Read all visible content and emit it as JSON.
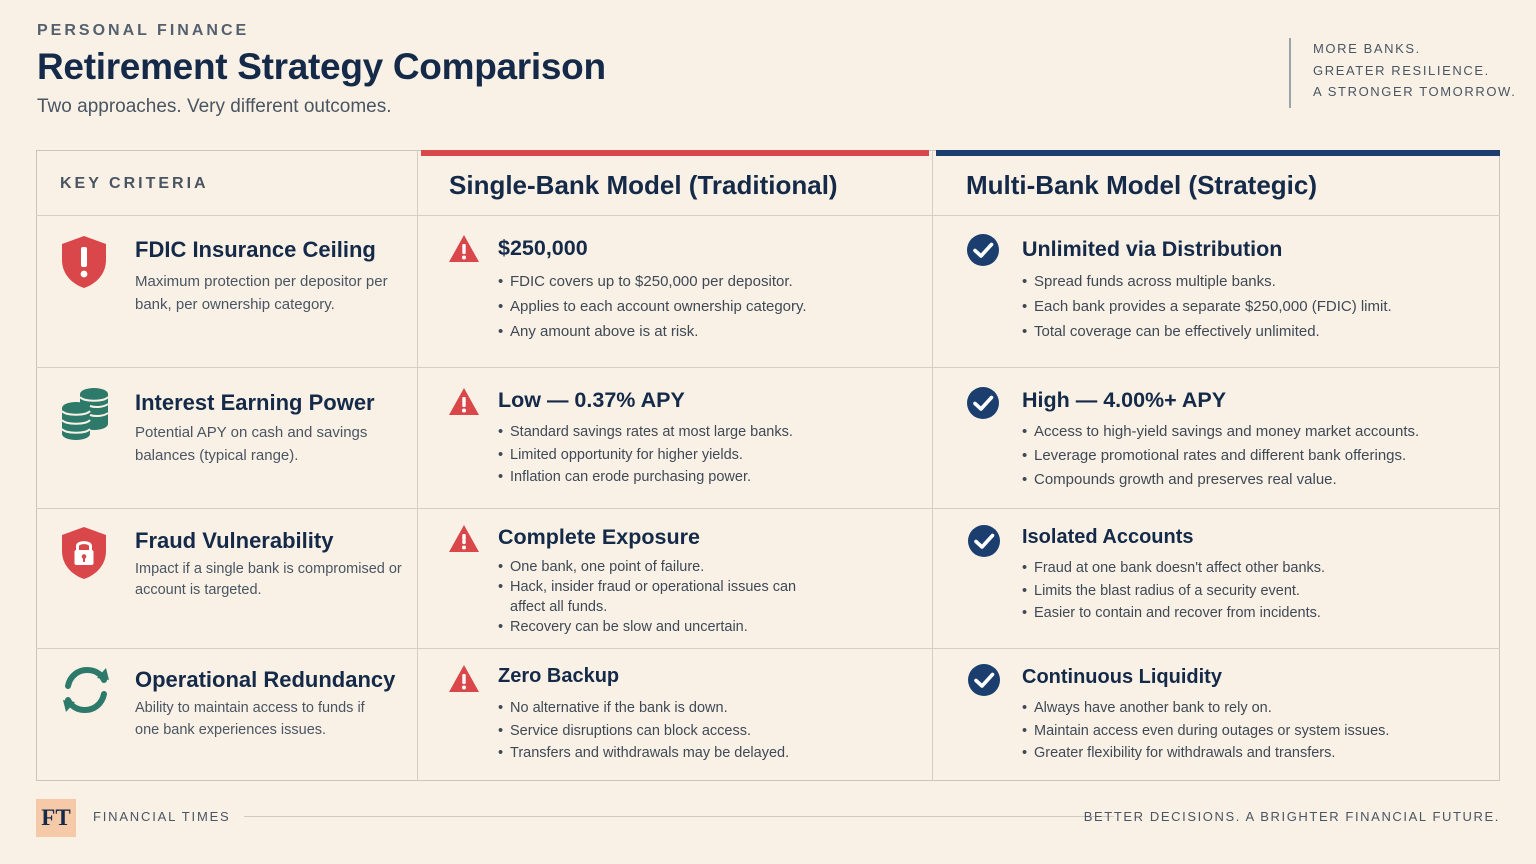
{
  "header": {
    "kicker": "PERSONAL FINANCE",
    "title": "Retirement Strategy Comparison",
    "subtitle": "Two approaches. Very different outcomes.",
    "tagline": [
      "MORE BANKS.",
      "GREATER RESILIENCE.",
      "A STRONGER TOMORROW."
    ]
  },
  "colors": {
    "background": "#f9f1e6",
    "navy": "#142a48",
    "red_accent": "#d9474a",
    "teal": "#2d7a6b",
    "blue_check": "#1b3e6e"
  },
  "table": {
    "criteria_header": "KEY CRITERIA",
    "single_header": "Single-Bank Model (Traditional)",
    "multi_header": "Multi-Bank Model (Strategic)",
    "rows": [
      {
        "icon": "shield-alert-icon",
        "criterion": "FDIC Insurance Ceiling",
        "description": "Maximum protection per depositor per bank, per ownership category.",
        "single": {
          "icon": "warning-icon",
          "headline": "$250,000",
          "bullets": [
            "FDIC covers up to $250,000 per depositor.",
            "Applies to each account ownership category.",
            "Any amount above is at risk."
          ]
        },
        "multi": {
          "icon": "check-circle-icon",
          "headline": "Unlimited via Distribution",
          "bullets": [
            "Spread funds across multiple banks.",
            "Each bank provides a separate $250,000 (FDIC) limit.",
            "Total coverage can be effectively unlimited."
          ]
        }
      },
      {
        "icon": "coin-stack-icon",
        "criterion": "Interest Earning Power",
        "description": "Potential APY on cash and savings balances (typical range).",
        "single": {
          "icon": "warning-icon",
          "headline": "Low — 0.37% APY",
          "bullets": [
            "Standard savings rates at most large banks.",
            "Limited opportunity for higher yields.",
            "Inflation can erode purchasing power."
          ]
        },
        "multi": {
          "icon": "check-circle-icon",
          "headline": "High — 4.00%+ APY",
          "bullets": [
            "Access to high-yield savings and money market accounts.",
            "Leverage promotional rates and different bank offerings.",
            "Compounds growth and preserves real value."
          ]
        }
      },
      {
        "icon": "shield-lock-icon",
        "criterion": "Fraud Vulnerability",
        "description": "Impact if a single bank is compromised or account is targeted.",
        "single": {
          "icon": "warning-icon",
          "headline": "Complete Exposure",
          "bullets": [
            "One bank, one point of failure.",
            "Hack, insider fraud or operational issues can affect all funds.",
            "Recovery can be slow and uncertain."
          ]
        },
        "multi": {
          "icon": "check-circle-icon",
          "headline": "Isolated Accounts",
          "bullets": [
            "Fraud at one bank doesn't affect other banks.",
            "Limits the blast radius of a security event.",
            "Easier to contain and recover from incidents."
          ]
        }
      },
      {
        "icon": "refresh-arrows-icon",
        "criterion": "Operational Redundancy",
        "description": "Ability to maintain access to funds if one bank experiences issues.",
        "single": {
          "icon": "warning-icon",
          "headline": "Zero Backup",
          "bullets": [
            "No alternative if the bank is down.",
            "Service disruptions can block access.",
            "Transfers and withdrawals may be delayed."
          ]
        },
        "multi": {
          "icon": "check-circle-icon",
          "headline": "Continuous Liquidity",
          "bullets": [
            "Always have another bank to rely on.",
            "Maintain access even during outages or system issues.",
            "Greater flexibility for withdrawals and transfers."
          ]
        }
      }
    ]
  },
  "footer": {
    "logo": "FT",
    "brand": "FINANCIAL TIMES",
    "slogan": "BETTER DECISIONS. A BRIGHTER FINANCIAL FUTURE."
  }
}
